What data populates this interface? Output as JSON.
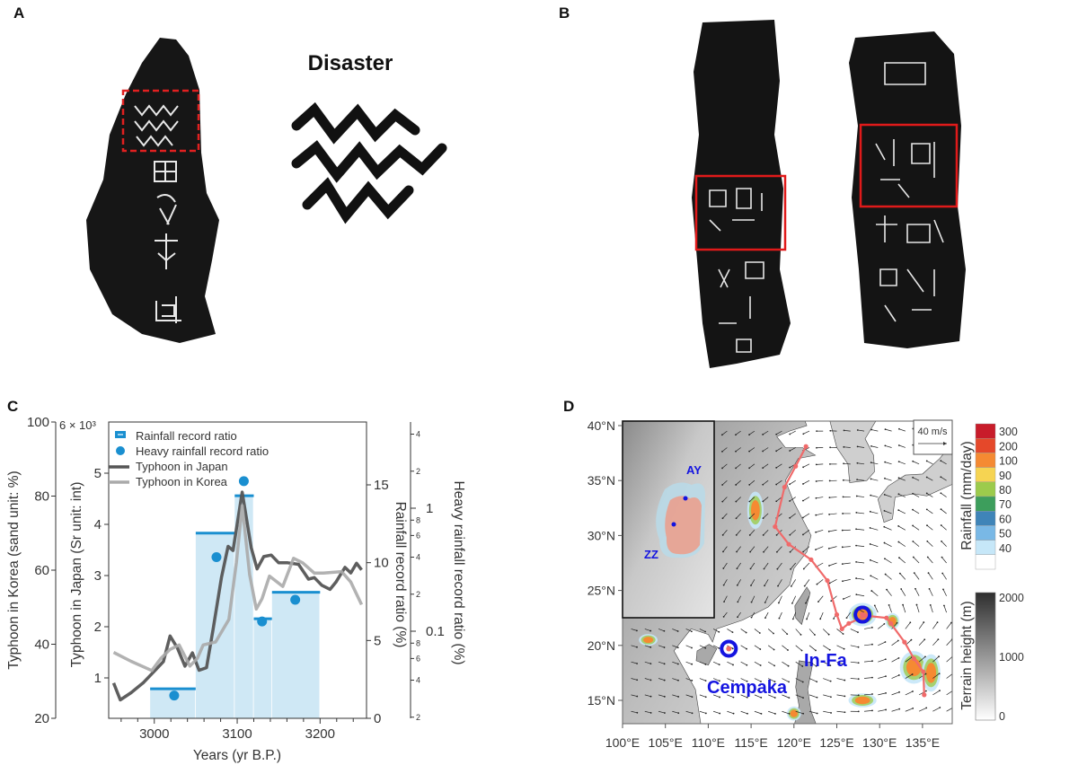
{
  "panels": {
    "a": {
      "label": "A",
      "glyph_title": "Disaster"
    },
    "b": {
      "label": "B"
    },
    "c": {
      "label": "C"
    },
    "d": {
      "label": "D"
    }
  },
  "chart_data": {
    "type": "line+bar",
    "xlabel": "Years (yr B.P.)",
    "xlim": [
      2945,
      3256
    ],
    "xticks": [
      "3000",
      "3100",
      "3200"
    ],
    "axes": {
      "korea": {
        "label": "Typhoon in Korea (sand unit: %)",
        "ylim": [
          20,
          100
        ],
        "ticks": [
          "20",
          "40",
          "60",
          "80",
          "100"
        ]
      },
      "japan": {
        "label": "Typhoon in Japan (Sr unit: int)",
        "ylim": [
          0.21,
          6
        ],
        "ticks": [
          "1",
          "2",
          "3",
          "4",
          "5"
        ],
        "multiplier": "6 × 10³"
      },
      "rainfall": {
        "label": "Rainfall record ratio (%)",
        "ylim": [
          0,
          18.3
        ],
        "ticks": [
          "0",
          "5",
          "10",
          "15"
        ]
      },
      "heavy": {
        "label": "Heavy rainfall record ratio (%)",
        "scale": "log",
        "ylim": [
          0.02,
          5
        ],
        "major_ticks": [
          "0.1",
          "1"
        ],
        "minor_ticks": [
          "2",
          "4",
          "6",
          "8",
          "2",
          "4",
          "6",
          "8",
          "2",
          "4"
        ]
      }
    },
    "legend": {
      "position": "top-left",
      "entries": [
        "Rainfall record ratio",
        "Heavy rainfall record ratio",
        "Typhoon in Japan",
        "Typhoon in Korea"
      ]
    },
    "rainfall_bars": [
      {
        "from": 2995,
        "to": 3050,
        "value": 1.9
      },
      {
        "from": 3050,
        "to": 3097,
        "value": 11.9
      },
      {
        "from": 3097,
        "to": 3120,
        "value": 14.3
      },
      {
        "from": 3120,
        "to": 3142,
        "value": 6.4
      },
      {
        "from": 3142,
        "to": 3200,
        "value": 8.1
      }
    ],
    "heavy_rainfall_points": [
      {
        "x": 3024,
        "y": 0.03
      },
      {
        "x": 3075,
        "y": 0.4
      },
      {
        "x": 3108,
        "y": 1.66
      },
      {
        "x": 3130,
        "y": 0.12
      },
      {
        "x": 3170,
        "y": 0.18
      }
    ],
    "series": [
      {
        "name": "Typhoon in Japan",
        "axis": "japan",
        "color": "#555555",
        "x": [
          2951,
          2959,
          2972,
          2987,
          3003,
          3011,
          3019,
          3028,
          3037,
          3046,
          3054,
          3063,
          3071,
          3081,
          3089,
          3095,
          3106,
          3117,
          3124,
          3132,
          3141,
          3150,
          3161,
          3174,
          3186,
          3193,
          3202,
          3212,
          3219,
          3230,
          3237,
          3244,
          3250
        ],
        "y": [
          0.9,
          0.57,
          0.71,
          0.91,
          1.18,
          1.32,
          1.82,
          1.58,
          1.23,
          1.49,
          1.15,
          1.2,
          1.96,
          2.96,
          3.57,
          3.49,
          4.63,
          3.54,
          3.13,
          3.37,
          3.4,
          3.25,
          3.25,
          3.22,
          2.93,
          2.96,
          2.81,
          2.73,
          2.87,
          3.16,
          3.05,
          3.24,
          3.11
        ]
      },
      {
        "name": "Typhoon in Korea",
        "axis": "korea",
        "color": "#aaaaaa",
        "x": [
          2951,
          2972,
          2997,
          3008,
          3019,
          3030,
          3043,
          3052,
          3059,
          3074,
          3090,
          3099,
          3106,
          3115,
          3123,
          3130,
          3139,
          3155,
          3168,
          3179,
          3193,
          3204,
          3226,
          3237,
          3250
        ],
        "y": [
          37.8,
          35.4,
          32.9,
          36.2,
          38.6,
          39.8,
          34.1,
          36.2,
          39.8,
          40.6,
          46.7,
          62.0,
          77.4,
          58.8,
          49.5,
          52.3,
          58.4,
          55.6,
          63.2,
          62.0,
          59.2,
          59.2,
          59.6,
          56.8,
          50.7
        ]
      }
    ],
    "colors": {
      "bar_fill": "#cfe8f5",
      "bar_top": "#1a8fd0",
      "points": "#1a8fd0"
    }
  },
  "map": {
    "lat_ticks": [
      "15°N",
      "20°N",
      "25°N",
      "30°N",
      "35°N",
      "40°N"
    ],
    "lon_ticks": [
      "100°E",
      "105°E",
      "110°E",
      "115°E",
      "120°E",
      "125°E",
      "130°E",
      "135°E"
    ],
    "wind_scale": "40 m/s",
    "inset_labels": {
      "ay": "AY",
      "zz": "ZZ"
    },
    "typhoons": {
      "in_fa": "In-Fa",
      "cempaka": "Cempaka"
    },
    "track": [
      [
        121.4,
        38.1
      ],
      [
        120.2,
        36.3
      ],
      [
        118.9,
        34.4
      ],
      [
        117.8,
        30.8
      ],
      [
        119.4,
        29.2
      ],
      [
        122.0,
        27.8
      ],
      [
        123.9,
        25.9
      ],
      [
        125.0,
        22.8
      ],
      [
        125.6,
        21.5
      ],
      [
        126.4,
        22.0
      ],
      [
        128.4,
        22.7
      ],
      [
        130.8,
        22.5
      ],
      [
        131.3,
        22.0
      ],
      [
        132.9,
        20.3
      ],
      [
        134.0,
        18.8
      ],
      [
        135.1,
        17.6
      ],
      [
        135.2,
        15.5
      ]
    ],
    "rainfall_colorbar": {
      "label": "Rainfall (mm/day)",
      "levels": [
        "300",
        "200",
        "100",
        "90",
        "80",
        "70",
        "60",
        "50",
        "40"
      ],
      "colors": [
        "#c81c2a",
        "#e5482a",
        "#f58a32",
        "#f6d452",
        "#9ccb4c",
        "#3d9e5c",
        "#3f84b8",
        "#79b8e6",
        "#c6e7f8",
        "#ffffff"
      ]
    },
    "terrain_colorbar": {
      "label": "Terrain height (m)",
      "ticks": [
        "2000",
        "1000",
        "0"
      ]
    },
    "colors": {
      "track": "#f06a6a",
      "typhoon_label": "#1414e0"
    }
  }
}
